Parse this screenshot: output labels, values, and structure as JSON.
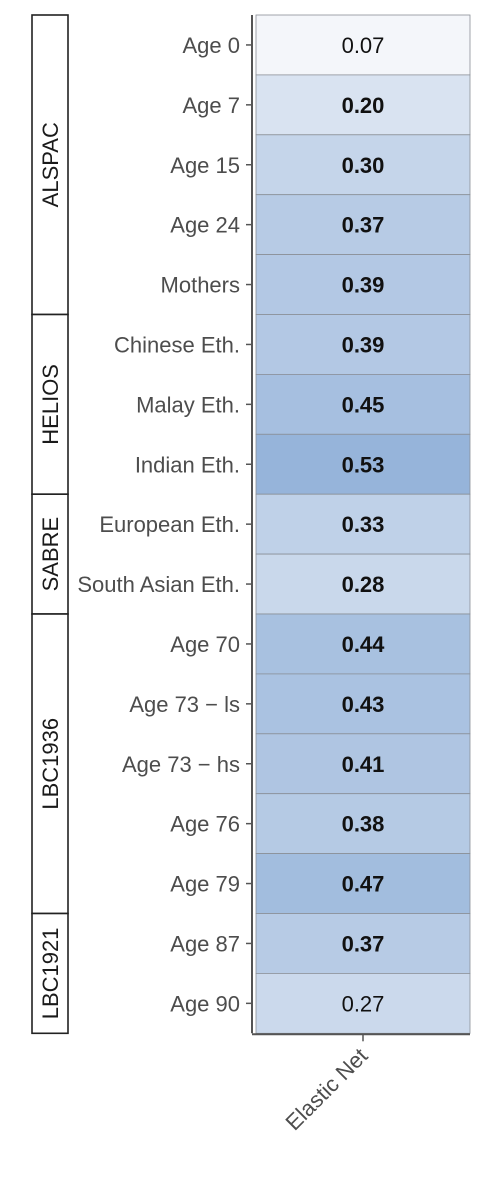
{
  "chart_data": {
    "type": "heatmap",
    "title": "",
    "xlabel": "",
    "ylabel": "",
    "columns": [
      "Elastic Net"
    ],
    "rows": [
      {
        "label": "Age 0",
        "value": 0.07,
        "value_text": "0.07",
        "bold": false
      },
      {
        "label": "Age 7",
        "value": 0.2,
        "value_text": "0.20",
        "bold": true
      },
      {
        "label": "Age 15",
        "value": 0.3,
        "value_text": "0.30",
        "bold": true
      },
      {
        "label": "Age 24",
        "value": 0.37,
        "value_text": "0.37",
        "bold": true
      },
      {
        "label": "Mothers",
        "value": 0.39,
        "value_text": "0.39",
        "bold": true
      },
      {
        "label": "Chinese Eth.",
        "value": 0.39,
        "value_text": "0.39",
        "bold": true
      },
      {
        "label": "Malay Eth.",
        "value": 0.45,
        "value_text": "0.45",
        "bold": true
      },
      {
        "label": "Indian Eth.",
        "value": 0.53,
        "value_text": "0.53",
        "bold": true
      },
      {
        "label": "European Eth.",
        "value": 0.33,
        "value_text": "0.33",
        "bold": true
      },
      {
        "label": "South Asian Eth.",
        "value": 0.28,
        "value_text": "0.28",
        "bold": true
      },
      {
        "label": "Age 70",
        "value": 0.44,
        "value_text": "0.44",
        "bold": true
      },
      {
        "label": "Age 73 − ls",
        "value": 0.43,
        "value_text": "0.43",
        "bold": true
      },
      {
        "label": "Age 73 − hs",
        "value": 0.41,
        "value_text": "0.41",
        "bold": true
      },
      {
        "label": "Age 76",
        "value": 0.38,
        "value_text": "0.38",
        "bold": true
      },
      {
        "label": "Age 79",
        "value": 0.47,
        "value_text": "0.47",
        "bold": true
      },
      {
        "label": "Age 87",
        "value": 0.37,
        "value_text": "0.37",
        "bold": true
      },
      {
        "label": "Age 90",
        "value": 0.27,
        "value_text": "0.27",
        "bold": false
      }
    ],
    "groups": [
      {
        "name": "ALSPAC",
        "first_row": 0,
        "last_row": 4
      },
      {
        "name": "HELIOS",
        "first_row": 5,
        "last_row": 7
      },
      {
        "name": "SABRE",
        "first_row": 8,
        "last_row": 9
      },
      {
        "name": "LBC1936",
        "first_row": 10,
        "last_row": 14
      },
      {
        "name": "LBC1921",
        "first_row": 15,
        "last_row": 16
      }
    ],
    "color_scale": {
      "low": "#f4f6fa",
      "high": "#96b4da",
      "domain": [
        0.07,
        0.53
      ]
    },
    "grid": false,
    "legend": "none"
  }
}
